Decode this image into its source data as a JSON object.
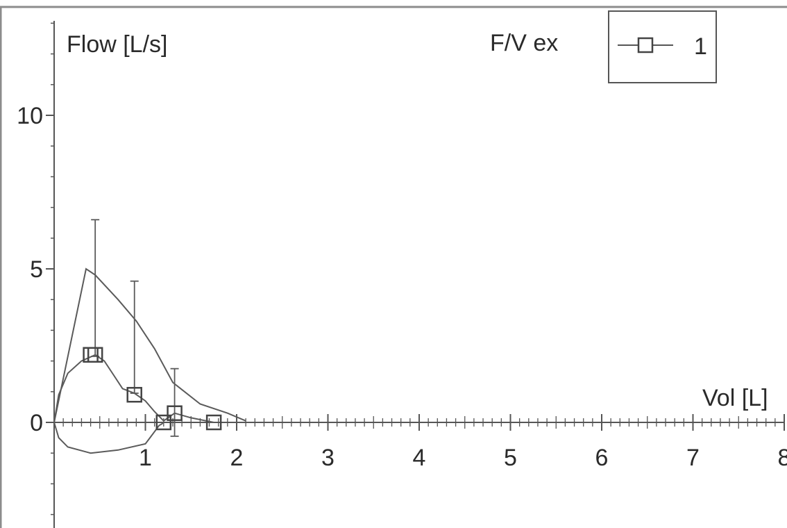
{
  "chart_data": {
    "type": "line",
    "title": "F/V ex",
    "xlabel": "Vol [L]",
    "ylabel": "Flow [L/s]",
    "xlim": [
      0,
      8
    ],
    "ylim": [
      -3,
      13
    ],
    "x_ticks": [
      {
        "value": 1,
        "label": "1"
      },
      {
        "value": 2,
        "label": "2"
      },
      {
        "value": 3,
        "label": "3"
      },
      {
        "value": 4,
        "label": "4"
      },
      {
        "value": 5,
        "label": "5"
      },
      {
        "value": 6,
        "label": "6"
      },
      {
        "value": 7,
        "label": "7"
      },
      {
        "value": 8,
        "label": "8"
      }
    ],
    "y_ticks": [
      {
        "value": 0,
        "label": "0"
      },
      {
        "value": 5,
        "label": "5"
      },
      {
        "value": 10,
        "label": "10"
      }
    ],
    "grid": false,
    "legend": {
      "position": "top-right",
      "entries": [
        "1"
      ]
    },
    "predicted_curve": {
      "x": [
        0.0,
        0.35,
        0.45,
        0.7,
        0.9,
        1.1,
        1.3,
        1.6,
        1.9,
        2.1
      ],
      "y": [
        0.0,
        5.0,
        4.8,
        4.0,
        3.3,
        2.4,
        1.3,
        0.6,
        0.3,
        0.05
      ]
    },
    "series": [
      {
        "name": "1",
        "x": [
          0.0,
          0.05,
          0.15,
          0.3,
          0.45,
          0.55,
          0.65,
          0.75,
          0.88,
          1.0,
          1.1,
          1.2,
          1.32,
          1.5,
          1.75
        ],
        "y": [
          0.0,
          0.9,
          1.6,
          2.0,
          2.2,
          2.0,
          1.55,
          1.1,
          0.95,
          0.7,
          0.35,
          0.05,
          0.3,
          0.15,
          0.0
        ],
        "markers": [
          {
            "x": 0.4,
            "y": 2.2
          },
          {
            "x": 0.45,
            "y": 2.2
          },
          {
            "x": 0.88,
            "y": 0.9
          },
          {
            "x": 1.2,
            "y": 0.0
          },
          {
            "x": 1.32,
            "y": 0.3
          },
          {
            "x": 1.75,
            "y": 0.0
          }
        ]
      },
      {
        "x": [
          0.0,
          0.05,
          0.15,
          0.4,
          0.7,
          1.0,
          1.05,
          1.1,
          1.15,
          1.18,
          1.2
        ],
        "y": [
          0.0,
          -0.5,
          -0.8,
          -1.0,
          -0.9,
          -0.7,
          -0.5,
          -0.3,
          -0.1,
          -0.05,
          0.0
        ]
      }
    ],
    "error_bars": [
      {
        "x": 0.45,
        "low": 2.15,
        "high": 6.6
      },
      {
        "x": 0.88,
        "low": 0.95,
        "high": 4.6
      },
      {
        "x": 1.32,
        "low": -0.45,
        "high": 1.75
      }
    ]
  }
}
